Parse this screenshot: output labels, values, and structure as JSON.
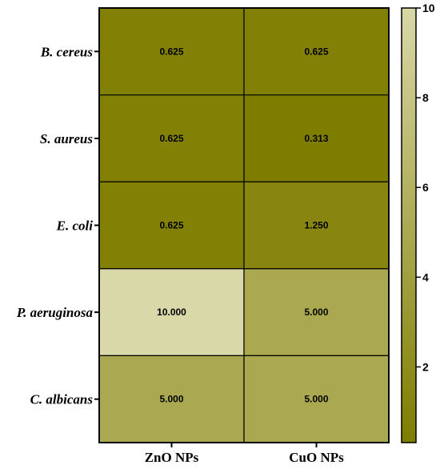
{
  "chart_data": {
    "type": "heatmap",
    "rows": [
      "B. cereus",
      "S. aureus",
      "E. coli",
      "P. aeruginosa",
      "C. albicans"
    ],
    "columns": [
      "ZnO NPs",
      "CuO NPs"
    ],
    "values": [
      [
        0.625,
        0.625
      ],
      [
        0.625,
        0.313
      ],
      [
        0.625,
        1.25
      ],
      [
        10.0,
        5.0
      ],
      [
        5.0,
        5.0
      ]
    ],
    "value_labels": [
      [
        "0.625",
        "0.625"
      ],
      [
        "0.625",
        "0.313"
      ],
      [
        "0.625",
        "1.250"
      ],
      [
        "10.000",
        "5.000"
      ],
      [
        "5.000",
        "5.000"
      ]
    ],
    "colorbar": {
      "range": [
        0.313,
        10
      ],
      "ticks": [
        2,
        4,
        6,
        8,
        10
      ],
      "tick_labels": [
        "2",
        "4",
        "6",
        "8",
        "10"
      ],
      "color_low": "#7f7d00",
      "color_high": "#d8d8a8"
    },
    "grid": true,
    "title": "",
    "xlabel": "",
    "ylabel": ""
  }
}
